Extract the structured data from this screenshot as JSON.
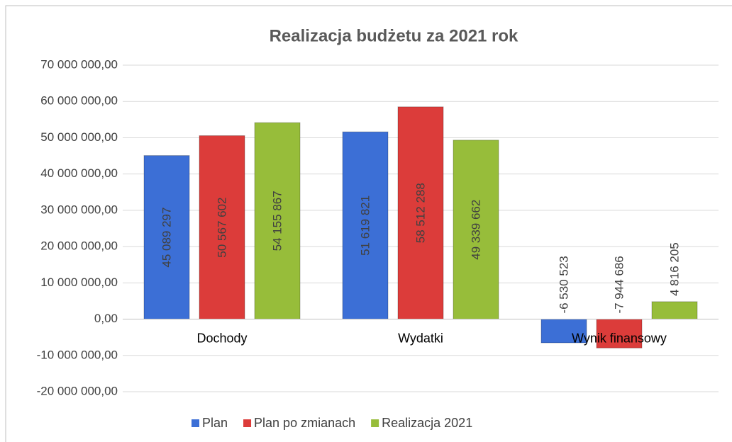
{
  "chart_data": {
    "type": "bar",
    "title": "Realizacja budżetu za  2021 rok",
    "categories": [
      "Dochody",
      "Wydatki",
      "Wynik finansowy"
    ],
    "series": [
      {
        "name": "Plan",
        "color": "#3c6fd6",
        "values": [
          45089297,
          51619821,
          -6530523
        ],
        "value_labels": [
          "45 089 297",
          "51 619 821",
          "-6 530 523"
        ]
      },
      {
        "name": "Plan po zmianach",
        "color": "#dc3c3a",
        "values": [
          50567602,
          58512288,
          -7944686
        ],
        "value_labels": [
          "50 567 602",
          "58 512 288",
          "-7 944 686"
        ]
      },
      {
        "name": "Realizacja 2021",
        "color": "#97bd3a",
        "values": [
          54155867,
          49339662,
          4816205
        ],
        "value_labels": [
          "54 155 867",
          "49 339 662",
          "4 816 205"
        ]
      }
    ],
    "ylim": [
      -20000000,
      70000000
    ],
    "yticks": [
      {
        "value": -20000000,
        "label": "-20 000 000,00"
      },
      {
        "value": -10000000,
        "label": "-10 000 000,00"
      },
      {
        "value": 0,
        "label": "0,00"
      },
      {
        "value": 10000000,
        "label": "10 000 000,00"
      },
      {
        "value": 20000000,
        "label": "20 000 000,00"
      },
      {
        "value": 30000000,
        "label": "30 000 000,00"
      },
      {
        "value": 40000000,
        "label": "40 000 000,00"
      },
      {
        "value": 50000000,
        "label": "50 000 000,00"
      },
      {
        "value": 60000000,
        "label": "60 000 000,00"
      },
      {
        "value": 70000000,
        "label": "70 000 000,00"
      }
    ],
    "grid": true,
    "legend": "bottom"
  }
}
